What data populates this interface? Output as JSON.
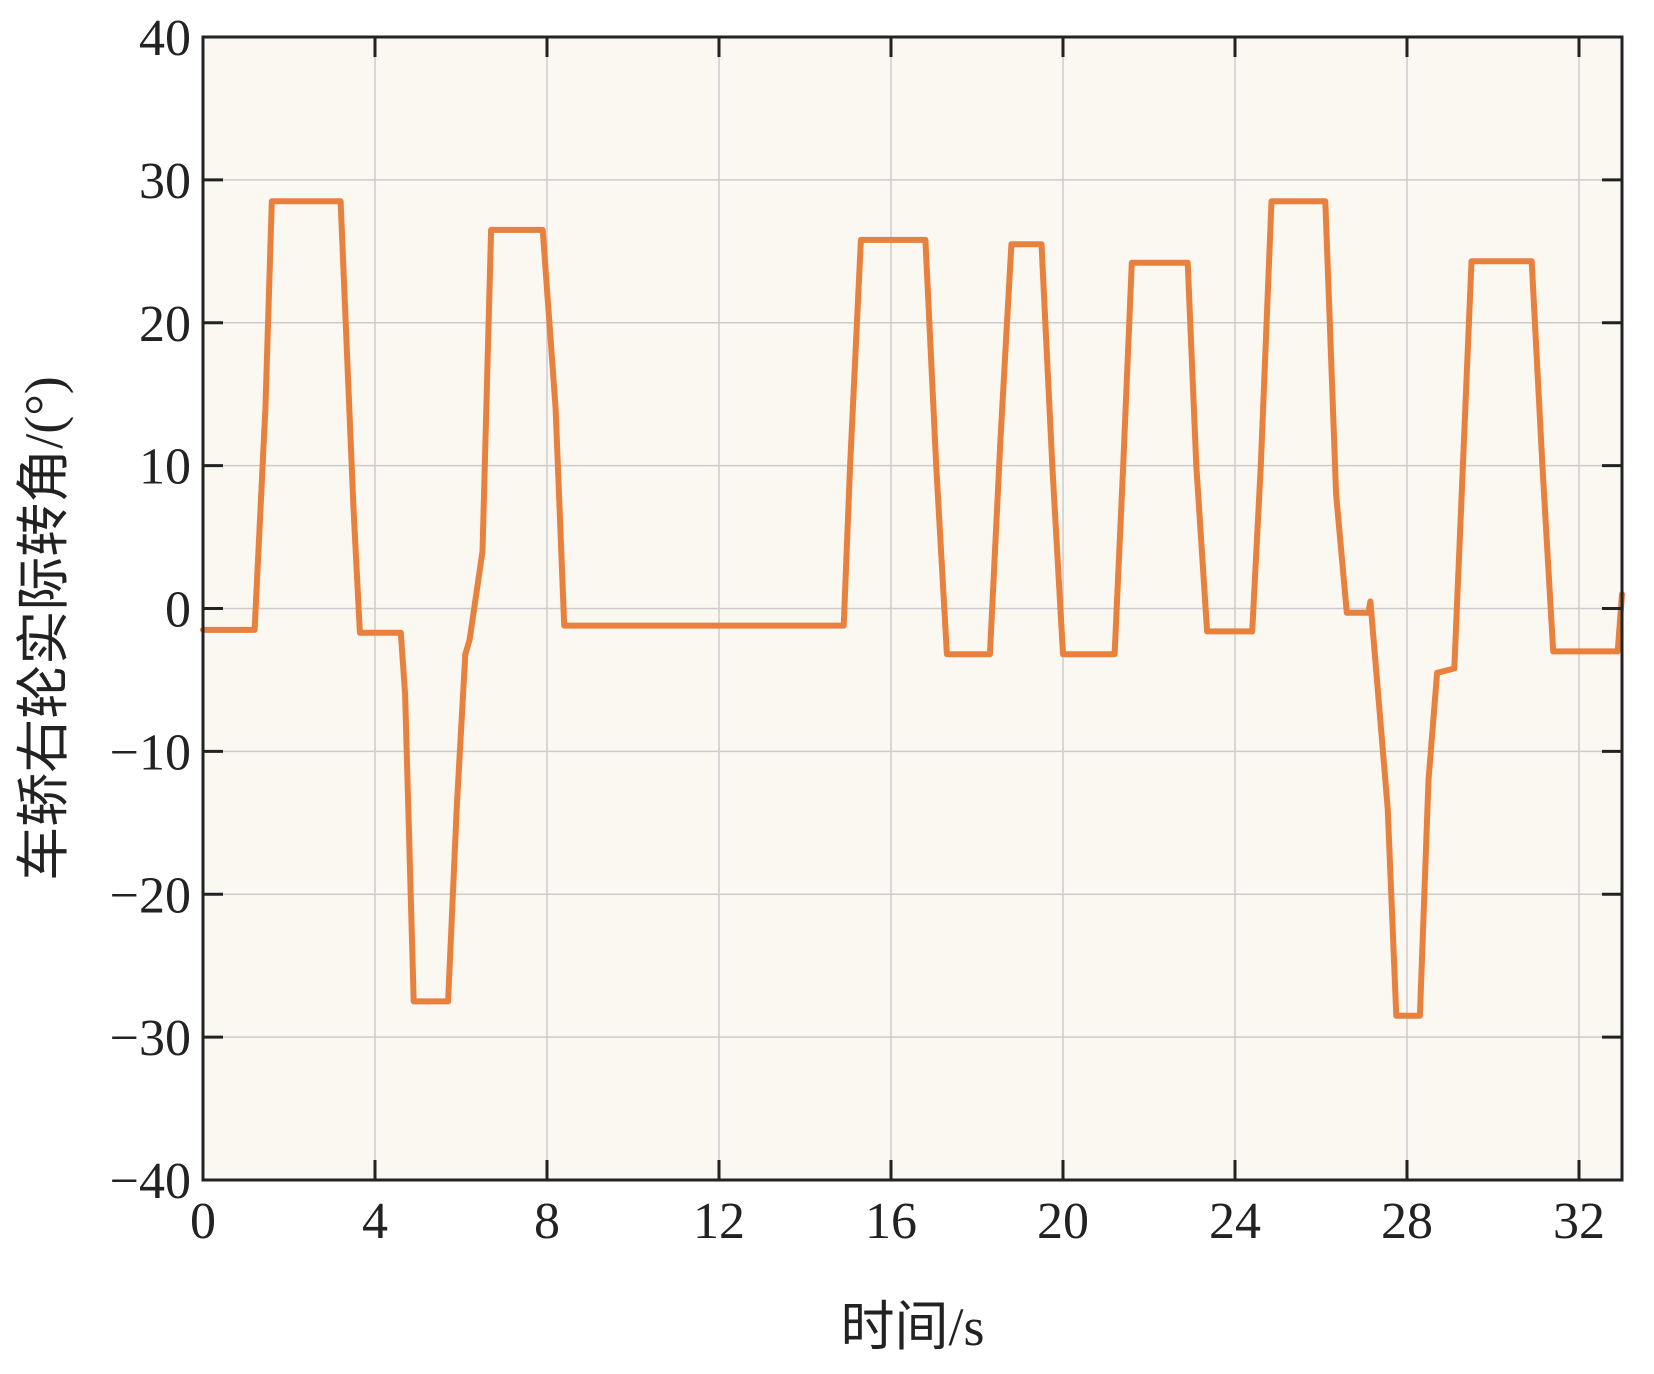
{
  "chart_data": {
    "type": "line",
    "title": "",
    "xlabel": "时间/s",
    "ylabel": "车轿右轮实际转角/(°)",
    "xlim": [
      0,
      33
    ],
    "ylim": [
      -40,
      40
    ],
    "x_ticks": [
      0,
      4,
      8,
      12,
      16,
      20,
      24,
      28,
      32
    ],
    "x_tick_labels": [
      "0",
      "4",
      "8",
      "12",
      "16",
      "20",
      "24",
      "28",
      "32"
    ],
    "y_ticks": [
      -40,
      -30,
      -20,
      -10,
      0,
      10,
      20,
      30,
      40
    ],
    "y_tick_labels": [
      "−40",
      "−30",
      "−20",
      "−10",
      "0",
      "10",
      "20",
      "30",
      "40"
    ],
    "grid": true,
    "legend": "none",
    "colors": {
      "line": "#E8803E",
      "plot_background": "#FBF8F2",
      "grid": "#CCCCCC",
      "axis": "#222222"
    },
    "series": [
      {
        "x": [
          0,
          1.2,
          1.45,
          1.6,
          3.2,
          3.5,
          3.65,
          4.6,
          4.7,
          4.9,
          5.7,
          5.9,
          6.1,
          6.2,
          6.5,
          6.7,
          6.8,
          7.9,
          8.2,
          8.4,
          14.9,
          15.05,
          15.3,
          16.8,
          17.05,
          17.3,
          18.3,
          18.55,
          18.8,
          19.5,
          19.75,
          20.0,
          21.2,
          21.4,
          21.6,
          22.9,
          23.1,
          23.35,
          24.4,
          24.6,
          24.85,
          26.1,
          26.35,
          26.6,
          27.1,
          27.15,
          27.55,
          27.75,
          28.3,
          28.5,
          28.7,
          29.1,
          29.3,
          29.5,
          30.9,
          31.15,
          31.4,
          32.9,
          33.0
        ],
        "y": [
          -1.5,
          -1.5,
          14,
          28.5,
          28.5,
          7,
          -1.7,
          -1.7,
          -6,
          -27.5,
          -27.5,
          -14,
          -3.2,
          -2.2,
          4,
          26.5,
          26.5,
          26.5,
          14,
          -1.2,
          -1.2,
          10,
          25.8,
          25.8,
          10,
          -3.2,
          -3.2,
          12,
          25.5,
          25.5,
          10,
          -3.2,
          -3.2,
          10,
          24.2,
          24.2,
          10,
          -1.6,
          -1.6,
          10,
          28.5,
          28.5,
          8,
          -0.3,
          -0.3,
          0.5,
          -14,
          -28.5,
          -28.5,
          -12,
          -4.5,
          -4.2,
          10,
          24.3,
          24.3,
          10,
          -3.0,
          -3.0,
          1.0
        ]
      }
    ]
  }
}
